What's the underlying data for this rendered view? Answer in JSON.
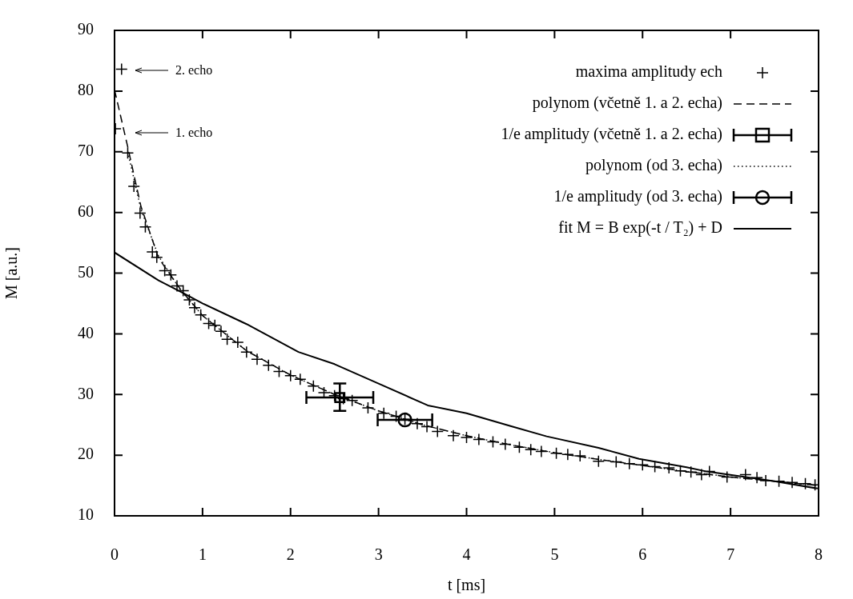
{
  "chart_data": {
    "type": "scatter",
    "xlabel": "t [ms]",
    "ylabel": "M [a.u.]",
    "xlim": [
      0,
      8
    ],
    "ylim": [
      10,
      90
    ],
    "xticks": [
      0,
      1,
      2,
      3,
      4,
      5,
      6,
      7,
      8
    ],
    "yticks": [
      10,
      20,
      30,
      40,
      50,
      60,
      70,
      80,
      90
    ],
    "legend": "top right",
    "series": [
      {
        "name": "maxima amplitudy ech",
        "type": "scatter",
        "marker": "cross",
        "color": "#000000",
        "x": [
          0.01,
          0.08,
          0.15,
          0.22,
          0.29,
          0.35,
          0.43,
          0.48,
          0.57,
          0.64,
          0.71,
          0.78,
          0.85,
          0.91,
          0.98,
          1.07,
          1.14,
          1.21,
          1.28,
          1.4,
          1.5,
          1.62,
          1.75,
          1.87,
          2.0,
          2.11,
          2.26,
          2.38,
          2.5,
          2.6,
          2.7,
          2.88,
          3.06,
          3.2,
          3.3,
          3.44,
          3.55,
          3.67,
          3.85,
          4.0,
          4.14,
          4.3,
          4.44,
          4.6,
          4.73,
          4.85,
          5.02,
          5.15,
          5.29,
          5.5,
          5.7,
          5.85,
          6.0,
          6.14,
          6.3,
          6.43,
          6.55,
          6.67,
          6.76,
          6.96,
          7.17,
          7.3,
          7.4,
          7.55,
          7.7,
          7.85,
          7.96
        ],
        "values": [
          73.8,
          83.6,
          69.8,
          64.3,
          59.9,
          57.6,
          53.5,
          52.6,
          50.4,
          49.7,
          47.9,
          47.1,
          45.6,
          44.3,
          43.1,
          41.7,
          41.4,
          40.4,
          39.1,
          38.6,
          37,
          35.8,
          34.8,
          33.8,
          33.1,
          32.5,
          31.4,
          30.3,
          29.8,
          29.3,
          29.0,
          27.8,
          26.9,
          26.4,
          25.9,
          25.2,
          24.7,
          23.9,
          23.2,
          22.9,
          22.6,
          22.2,
          21.8,
          21.3,
          20.9,
          20.6,
          20.3,
          20.1,
          19.9,
          19.0,
          18.9,
          18.6,
          18.4,
          18.1,
          17.9,
          17.4,
          17.2,
          16.8,
          17.3,
          16.4,
          16.8,
          16.3,
          15.8,
          15.7,
          15.5,
          15.3,
          15.1
        ]
      },
      {
        "name": "polynom (včetně 1. a 2. echa)",
        "type": "line",
        "line_style": "dashed",
        "color": "#000000",
        "x": [
          0,
          0.15,
          0.3,
          0.5,
          0.75,
          1,
          1.5,
          2,
          2.5,
          3,
          3.5,
          4,
          4.5,
          5,
          5.5,
          6,
          6.5,
          7,
          7.5,
          8
        ],
        "values": [
          80.2,
          70.8,
          61,
          52.5,
          47.3,
          43,
          37.2,
          33.2,
          30,
          27.3,
          25,
          23.2,
          21.7,
          20.4,
          19.3,
          18.3,
          17.3,
          16.4,
          15.7,
          15
        ]
      },
      {
        "name": "1/e amplitudy (včetně 1. a 2. echa)",
        "type": "scatter",
        "marker": "square",
        "color": "#000000",
        "x": [
          2.56
        ],
        "values": [
          29.5
        ],
        "errors": [
          [
            27.3,
            31.8
          ]
        ],
        "xerrors": [
          [
            2.18,
            2.94
          ]
        ]
      },
      {
        "name": "polynom (od 3. echa)",
        "type": "line",
        "line_style": "dotted",
        "color": "#000000",
        "x": [
          0.15,
          0.3,
          0.5,
          0.75,
          1,
          1.5,
          2,
          2.5,
          3,
          3.5,
          4,
          4.5,
          5,
          5.5,
          6,
          6.5,
          7,
          7.5,
          8
        ],
        "values": [
          70,
          60.5,
          52.8,
          47.2,
          43,
          37.2,
          33.2,
          30,
          27.3,
          25,
          23.2,
          21.7,
          20.4,
          19.3,
          18.3,
          17.3,
          16.4,
          15.7,
          15
        ]
      },
      {
        "name": "1/e amplitudy (od 3. echa)",
        "type": "scatter",
        "marker": "circle",
        "color": "#000000",
        "x": [
          3.3
        ],
        "values": [
          25.8
        ],
        "xerrors": [
          [
            2.99,
            3.61
          ]
        ]
      },
      {
        "name": "fit M = B exp(-t / T₂) + D",
        "type": "line",
        "line_style": "solid",
        "color": "#000000",
        "x": [
          0,
          0.5,
          0.77,
          1,
          1.5,
          2.09,
          2.5,
          3,
          3.56,
          4,
          4.5,
          4.91,
          5.5,
          5.96,
          6.5,
          6.73,
          7.5,
          7.99
        ],
        "values": [
          53.4,
          48.8,
          46.8,
          45,
          41.6,
          37.0,
          35.0,
          31.8,
          28.2,
          26.9,
          24.8,
          23.1,
          21.2,
          19.4,
          18.0,
          17.3,
          15.7,
          14.5
        ]
      }
    ],
    "annotations": [
      "2. echo",
      "1. echo"
    ]
  }
}
